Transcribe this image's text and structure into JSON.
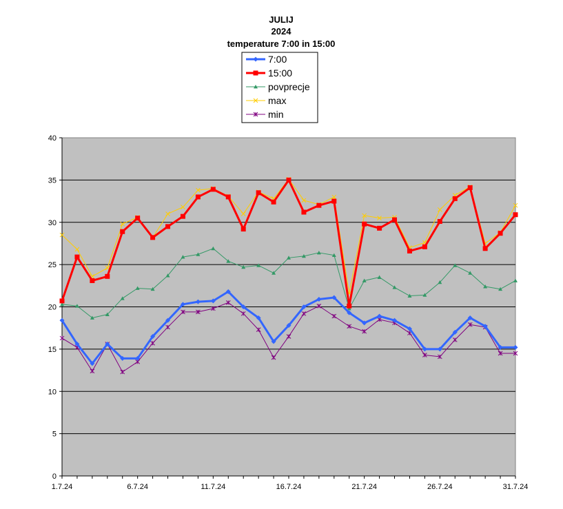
{
  "chart_data": {
    "type": "line",
    "title": [
      "JULIJ",
      "2024",
      "temperature 7:00 in 15:00"
    ],
    "xlabel": "",
    "ylabel": "",
    "ylim": [
      0,
      40
    ],
    "yticks": [
      0,
      5,
      10,
      15,
      20,
      25,
      30,
      35,
      40
    ],
    "x": [
      "1.7.24",
      "2.7.24",
      "3.7.24",
      "4.7.24",
      "5.7.24",
      "6.7.24",
      "7.7.24",
      "8.7.24",
      "9.7.24",
      "10.7.24",
      "11.7.24",
      "12.7.24",
      "13.7.24",
      "14.7.24",
      "15.7.24",
      "16.7.24",
      "17.7.24",
      "18.7.24",
      "19.7.24",
      "20.7.24",
      "21.7.24",
      "22.7.24",
      "23.7.24",
      "24.7.24",
      "25.7.24",
      "26.7.24",
      "27.7.24",
      "28.7.24",
      "29.7.24",
      "30.7.24",
      "31.7.24"
    ],
    "xtick_labels": [
      "1.7.24",
      "6.7.24",
      "11.7.24",
      "16.7.24",
      "21.7.24",
      "26.7.24",
      "31.7.24"
    ],
    "grid": "horizontal",
    "plot_background": "#c0c0c0",
    "legend_position": "top-center",
    "series": [
      {
        "name": "7:00",
        "color": "#3366ff",
        "marker": "diamond",
        "line_width": 3,
        "values": [
          18.4,
          15.6,
          13.3,
          15.6,
          13.9,
          13.9,
          16.5,
          18.4,
          20.3,
          20.6,
          20.7,
          21.8,
          20.0,
          18.7,
          15.9,
          17.8,
          20.0,
          20.9,
          21.1,
          19.3,
          18.1,
          18.9,
          18.4,
          17.4,
          15.0,
          15.0,
          17.0,
          18.7,
          17.7,
          15.2,
          15.2
        ]
      },
      {
        "name": "15:00",
        "color": "#ff0000",
        "marker": "square",
        "line_width": 3,
        "values": [
          20.7,
          25.9,
          23.1,
          23.6,
          28.9,
          30.5,
          28.2,
          29.5,
          30.7,
          33.0,
          33.9,
          33.0,
          29.2,
          33.5,
          32.4,
          35.0,
          31.2,
          32.0,
          32.5,
          20.1,
          29.8,
          29.3,
          30.3,
          26.6,
          27.1,
          30.1,
          32.8,
          34.1,
          26.9,
          28.7,
          30.9
        ]
      },
      {
        "name": "povprecje",
        "color": "#339966",
        "marker": "triangle",
        "line_width": 1,
        "values": [
          20.3,
          20.1,
          18.7,
          19.1,
          21.0,
          22.2,
          22.1,
          23.7,
          25.9,
          26.2,
          26.9,
          25.4,
          24.7,
          24.9,
          24.0,
          25.8,
          26.0,
          26.4,
          26.1,
          19.8,
          23.1,
          23.5,
          22.3,
          21.3,
          21.4,
          22.9,
          24.9,
          24.0,
          22.4,
          22.1,
          23.1
        ]
      },
      {
        "name": "max",
        "color": "#ffcc00",
        "marker": "x",
        "line_width": 1,
        "values": [
          28.5,
          26.8,
          23.6,
          24.6,
          29.8,
          30.6,
          28.2,
          31.0,
          31.8,
          33.8,
          34.0,
          33.1,
          31.0,
          33.6,
          32.8,
          35.1,
          32.6,
          32.1,
          33.0,
          21.6,
          30.8,
          30.5,
          30.6,
          27.0,
          27.6,
          31.5,
          33.2,
          34.2,
          27.5,
          28.8,
          32.0
        ]
      },
      {
        "name": "min",
        "color": "#800080",
        "marker": "asterisk",
        "line_width": 1,
        "values": [
          16.3,
          15.2,
          12.4,
          15.6,
          12.3,
          13.5,
          15.7,
          17.6,
          19.4,
          19.4,
          19.8,
          20.5,
          19.2,
          17.3,
          14.0,
          16.5,
          19.2,
          20.1,
          18.9,
          17.7,
          17.1,
          18.5,
          18.1,
          16.9,
          14.3,
          14.1,
          16.1,
          17.9,
          17.6,
          14.5,
          14.5
        ]
      }
    ]
  }
}
